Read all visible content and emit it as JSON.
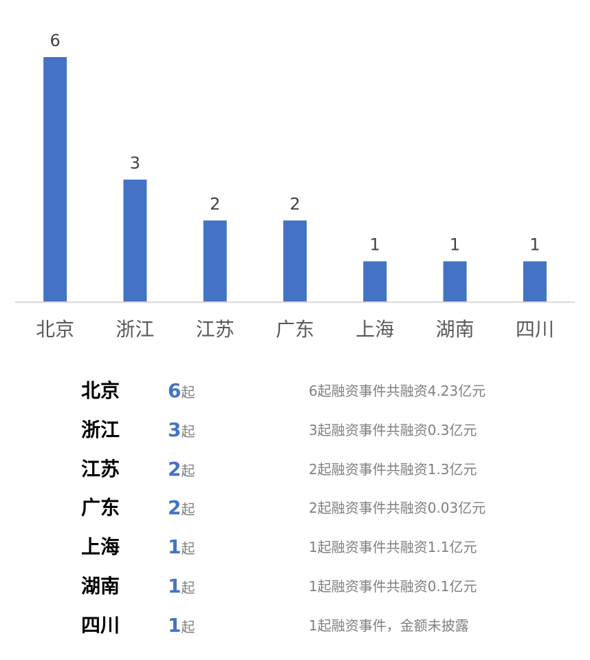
{
  "chart_data": {
    "type": "bar",
    "categories": [
      "北京",
      "浙江",
      "江苏",
      "广东",
      "上海",
      "湖南",
      "四川"
    ],
    "values": [
      6,
      3,
      2,
      2,
      1,
      1,
      1
    ],
    "title": "",
    "xlabel": "",
    "ylabel": "",
    "ylim": [
      0,
      6
    ],
    "grid": false,
    "colors": {
      "bar": "#4472C4"
    }
  },
  "summary": {
    "rows": [
      {
        "region": "北京",
        "count": "6",
        "unit": "起",
        "desc": "6起融资事件共融资4.23亿元"
      },
      {
        "region": "浙江",
        "count": "3",
        "unit": "起",
        "desc": "3起融资事件共融资0.3亿元"
      },
      {
        "region": "江苏",
        "count": "2",
        "unit": "起",
        "desc": "2起融资事件共融资1.3亿元"
      },
      {
        "region": "广东",
        "count": "2",
        "unit": "起",
        "desc": "2起融资事件共融资0.03亿元"
      },
      {
        "region": "上海",
        "count": "1",
        "unit": "起",
        "desc": "1起融资事件共融资1.1亿元"
      },
      {
        "region": "湖南",
        "count": "1",
        "unit": "起",
        "desc": "1起融资事件共融资0.1亿元"
      },
      {
        "region": "四川",
        "count": "1",
        "unit": "起",
        "desc": "1起融资事件，金额未披露"
      }
    ]
  }
}
